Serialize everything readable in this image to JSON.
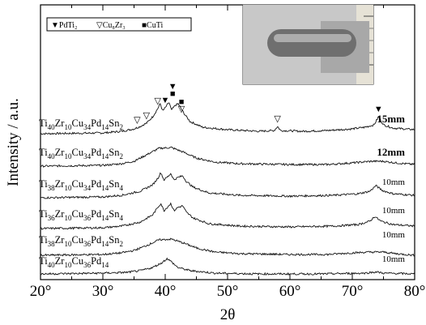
{
  "chart_data": {
    "type": "line",
    "title": "",
    "xlabel": "2θ",
    "ylabel": "Intensity / a.u.",
    "xlim": [
      20,
      80
    ],
    "x_ticks": [
      "20°",
      "30°",
      "40°",
      "50°",
      "60°",
      "70°",
      "80°"
    ],
    "grid": false,
    "legend": {
      "placement": "top-left",
      "entries": [
        {
          "symbol": "▼",
          "label": "PdTi₂"
        },
        {
          "symbol": "▽",
          "label": "Cu₈Zr₃"
        },
        {
          "symbol": "■",
          "label": "CuTi"
        }
      ]
    },
    "inset": {
      "description": "photograph of cast rod sample with ruler",
      "ruler_marks": [
        "3",
        "4"
      ]
    },
    "series": [
      {
        "composition": [
          [
            "Ti",
            "40"
          ],
          [
            "Zr",
            "10"
          ],
          [
            "Cu",
            "34"
          ],
          [
            "Pd",
            "14"
          ],
          [
            "Sn",
            "2"
          ]
        ],
        "thickness": "15mm",
        "thickness_bold": true,
        "points": [
          [
            20,
            5
          ],
          [
            25,
            5.5
          ],
          [
            30,
            6
          ],
          [
            33,
            8
          ],
          [
            35,
            11
          ],
          [
            36,
            14
          ],
          [
            37,
            18
          ],
          [
            38,
            26
          ],
          [
            38.8,
            36
          ],
          [
            39.2,
            42
          ],
          [
            39.6,
            33
          ],
          [
            40.1,
            38
          ],
          [
            40.6,
            44
          ],
          [
            41,
            34
          ],
          [
            41.6,
            40
          ],
          [
            42.1,
            42
          ],
          [
            42.6,
            35
          ],
          [
            43.2,
            28
          ],
          [
            44,
            20
          ],
          [
            46,
            13
          ],
          [
            50,
            10
          ],
          [
            55,
            8
          ],
          [
            57.5,
            9
          ],
          [
            58,
            14
          ],
          [
            58.5,
            9
          ],
          [
            62,
            8
          ],
          [
            66,
            9
          ],
          [
            70,
            11
          ],
          [
            72,
            13
          ],
          [
            73.5,
            16
          ],
          [
            74.2,
            26
          ],
          [
            75,
            16
          ],
          [
            76.5,
            12
          ],
          [
            80,
            10
          ]
        ]
      },
      {
        "composition": [
          [
            "Ti",
            "40"
          ],
          [
            "Zr",
            "10"
          ],
          [
            "Cu",
            "34"
          ],
          [
            "Pd",
            "14"
          ],
          [
            "Sn",
            "2"
          ]
        ],
        "thickness": "12mm",
        "thickness_bold": true,
        "points": [
          [
            20,
            4
          ],
          [
            30,
            5
          ],
          [
            33,
            7
          ],
          [
            35,
            10
          ],
          [
            37,
            18
          ],
          [
            39,
            26
          ],
          [
            41,
            27
          ],
          [
            43,
            21
          ],
          [
            45,
            14
          ],
          [
            48,
            9
          ],
          [
            52,
            7
          ],
          [
            60,
            6
          ],
          [
            66,
            6
          ],
          [
            70,
            8
          ],
          [
            73,
            10
          ],
          [
            75,
            10
          ],
          [
            77,
            8
          ],
          [
            80,
            6
          ]
        ]
      },
      {
        "composition": [
          [
            "Ti",
            "38"
          ],
          [
            "Zr",
            "10"
          ],
          [
            "Cu",
            "34"
          ],
          [
            "Pd",
            "14"
          ],
          [
            "Sn",
            "4"
          ]
        ],
        "thickness": "10mm",
        "thickness_bold": false,
        "points": [
          [
            20,
            4
          ],
          [
            30,
            5
          ],
          [
            33,
            7
          ],
          [
            36,
            12
          ],
          [
            38,
            20
          ],
          [
            38.8,
            28
          ],
          [
            39.3,
            35
          ],
          [
            39.8,
            26
          ],
          [
            40.4,
            30
          ],
          [
            40.9,
            34
          ],
          [
            41.4,
            26
          ],
          [
            42,
            29
          ],
          [
            42.8,
            31
          ],
          [
            43.4,
            24
          ],
          [
            44.5,
            17
          ],
          [
            47,
            10
          ],
          [
            52,
            7
          ],
          [
            60,
            6
          ],
          [
            67,
            7
          ],
          [
            71,
            9
          ],
          [
            72.8,
            12
          ],
          [
            73.8,
            19
          ],
          [
            74.8,
            13
          ],
          [
            76.5,
            9
          ],
          [
            80,
            7
          ]
        ]
      },
      {
        "composition": [
          [
            "Ti",
            "36"
          ],
          [
            "Zr",
            "10"
          ],
          [
            "Cu",
            "36"
          ],
          [
            "Pd",
            "14"
          ],
          [
            "Sn",
            "4"
          ]
        ],
        "thickness": "10mm",
        "thickness_bold": false,
        "points": [
          [
            20,
            4
          ],
          [
            30,
            5
          ],
          [
            33,
            7
          ],
          [
            36,
            12
          ],
          [
            38,
            21
          ],
          [
            38.8,
            30
          ],
          [
            39.3,
            35
          ],
          [
            39.8,
            26
          ],
          [
            40.4,
            31
          ],
          [
            40.9,
            35
          ],
          [
            41.4,
            26
          ],
          [
            42,
            30
          ],
          [
            42.8,
            32
          ],
          [
            43.4,
            24
          ],
          [
            44.5,
            17
          ],
          [
            47,
            10
          ],
          [
            52,
            7
          ],
          [
            60,
            6
          ],
          [
            67,
            7
          ],
          [
            71,
            9
          ],
          [
            72.8,
            13
          ],
          [
            73.6,
            19
          ],
          [
            74.6,
            13
          ],
          [
            76.5,
            9
          ],
          [
            80,
            7
          ]
        ]
      },
      {
        "composition": [
          [
            "Ti",
            "38"
          ],
          [
            "Zr",
            "10"
          ],
          [
            "Cu",
            "36"
          ],
          [
            "Pd",
            "14"
          ],
          [
            "Sn",
            "2"
          ]
        ],
        "thickness": "10mm",
        "thickness_bold": false,
        "points": [
          [
            20,
            3
          ],
          [
            30,
            4
          ],
          [
            33,
            6
          ],
          [
            35,
            9
          ],
          [
            37,
            15
          ],
          [
            39,
            22
          ],
          [
            41,
            23
          ],
          [
            43,
            18
          ],
          [
            45,
            12
          ],
          [
            48,
            7
          ],
          [
            52,
            5
          ],
          [
            60,
            4
          ],
          [
            66,
            4
          ],
          [
            70,
            6
          ],
          [
            73,
            7
          ],
          [
            75,
            7
          ],
          [
            77,
            5
          ],
          [
            80,
            3
          ]
        ]
      },
      {
        "composition": [
          [
            "Ti",
            "40"
          ],
          [
            "Zr",
            "10"
          ],
          [
            "Cu",
            "36"
          ],
          [
            "Pd",
            "14"
          ]
        ],
        "thickness": "10mm",
        "thickness_bold": false,
        "points": [
          [
            20,
            2
          ],
          [
            30,
            3
          ],
          [
            34,
            4
          ],
          [
            36,
            6
          ],
          [
            38,
            10
          ],
          [
            39.5,
            16
          ],
          [
            40.3,
            21
          ],
          [
            41,
            17
          ],
          [
            42,
            10
          ],
          [
            44,
            6
          ],
          [
            48,
            3
          ],
          [
            55,
            2
          ],
          [
            65,
            2
          ],
          [
            72,
            3
          ],
          [
            73.8,
            4.5
          ],
          [
            75,
            3
          ],
          [
            80,
            2
          ]
        ]
      }
    ],
    "annotations": [
      {
        "symbol": "▽",
        "x": 35.5,
        "series": 0
      },
      {
        "symbol": "▽",
        "x": 37.0,
        "series": 0
      },
      {
        "symbol": "▽",
        "x": 38.8,
        "series": 0
      },
      {
        "symbol": "▼",
        "x": 40.0,
        "series": 0
      },
      {
        "symbol": "▼",
        "x": 41.2,
        "series": 0,
        "offset": 2
      },
      {
        "symbol": "■",
        "x": 41.2,
        "series": 0,
        "offset": 1
      },
      {
        "symbol": "■",
        "x": 42.6,
        "series": 0
      },
      {
        "symbol": "▽",
        "x": 42.6,
        "series": 0,
        "stack_below": true
      },
      {
        "symbol": "▽",
        "x": 58.0,
        "series": 0
      },
      {
        "symbol": "▼",
        "x": 74.2,
        "series": 0
      }
    ]
  }
}
